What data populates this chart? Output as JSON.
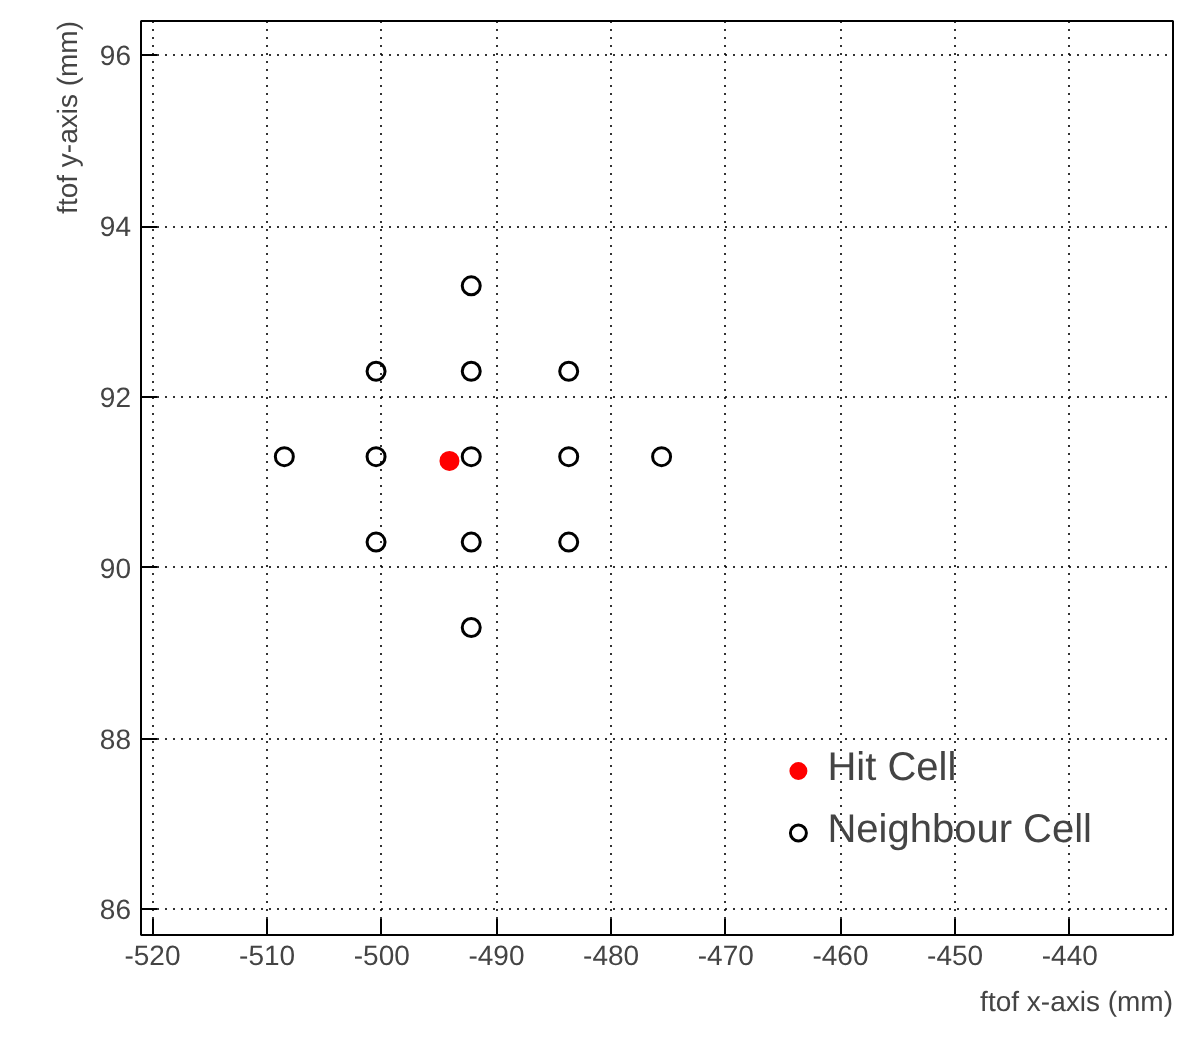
{
  "chart_data": {
    "type": "scatter",
    "xlabel": "ftof x-axis (mm)",
    "ylabel": "ftof y-axis (mm)",
    "xlim": [
      -521,
      -431
    ],
    "ylim": [
      85.7,
      96.4
    ],
    "xticks": [
      -520,
      -510,
      -500,
      -490,
      -480,
      -470,
      -460,
      -450,
      -440
    ],
    "yticks": [
      86,
      88,
      90,
      92,
      94,
      96
    ],
    "grid": true,
    "legend": "bottom right",
    "series": [
      {
        "name": "Hit Cell",
        "color": "#ff0000",
        "marker": "circle",
        "x": [
          -494.1
        ],
        "values": [
          91.25
        ]
      },
      {
        "name": "Neighbour Cell",
        "color": "#000000",
        "marker": "circle_open",
        "x": [
          -508.5,
          -500.5,
          -500.5,
          -500.5,
          -492.2,
          -492.2,
          -492.2,
          -492.2,
          -492.2,
          -483.7,
          -483.7,
          -483.7,
          -475.6
        ],
        "values": [
          91.3,
          92.3,
          91.3,
          90.3,
          93.3,
          92.3,
          91.3,
          90.3,
          89.3,
          92.3,
          91.3,
          90.3,
          91.3
        ]
      }
    ]
  }
}
